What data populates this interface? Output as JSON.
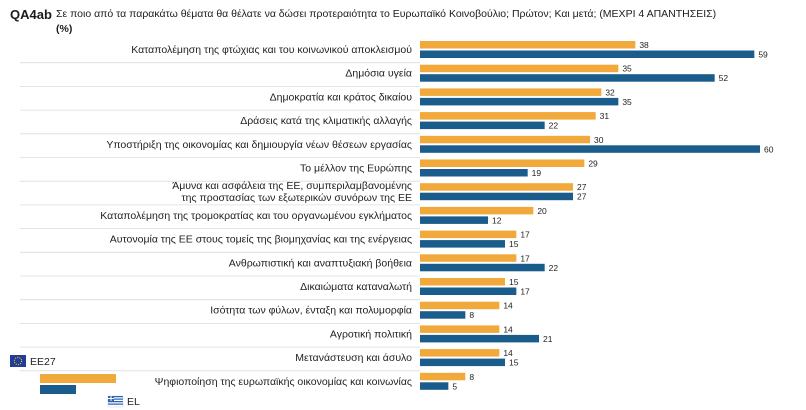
{
  "question": {
    "code": "QA4ab",
    "text": "Σε ποιο από τα παρακάτω θέματα θα θέλατε να δώσει προτεραιότητα το Ευρωπαϊκό Κοινοβούλιο; Πρώτον; Και μετά; (ΜΕΧΡΙ 4 ΑΠΑΝΤΗΣΕΙΣ)",
    "unit": "(%)"
  },
  "colors": {
    "eu27": "#f2a93b",
    "el": "#1a5c8c"
  },
  "legend": [
    {
      "label": "EE27",
      "icon": "eu-flag-icon"
    },
    {
      "label": "EL",
      "icon": "greek-flag-icon"
    }
  ],
  "chart_data": {
    "type": "bar",
    "orientation": "horizontal",
    "xlim": [
      0,
      60
    ],
    "grid": false,
    "legend_position": "bottom-left",
    "categories": [
      "Καταπολέμηση της φτώχιας και του κοινωνικού αποκλεισμού",
      "Δημόσια υγεία",
      "Δημοκρατία και κράτος δικαίου",
      "Δράσεις κατά της κλιματικής αλλαγής",
      "Υποστήριξη της οικονομίας και δημιουργία νέων θέσεων εργασίας",
      "Το μέλλον της Ευρώπης",
      "Άμυνα και ασφάλεια της ΕΕ, συμπεριλαμβανομένης\nτης προστασίας των εξωτερικών συνόρων της ΕΕ",
      "Καταπολέμηση της τρομοκρατίας και του οργανωμένου εγκλήματος",
      "Αυτονομία της ΕΕ στους τομείς της βιομηχανίας και της ενέργειας",
      "Ανθρωπιστική και αναπτυξιακή βοήθεια",
      "Δικαιώματα καταναλωτή",
      "Ισότητα των φύλων, ένταξη και πολυμορφία",
      "Αγροτική πολιτική",
      "Μετανάστευση και άσυλο",
      "Ψηφιοποίηση της ευρωπαϊκής οικονομίας και κοινωνίας"
    ],
    "series": [
      {
        "name": "EE27",
        "values": [
          38,
          35,
          32,
          31,
          30,
          29,
          27,
          20,
          17,
          17,
          15,
          14,
          14,
          14,
          8
        ]
      },
      {
        "name": "EL",
        "values": [
          59,
          52,
          35,
          22,
          60,
          19,
          27,
          12,
          15,
          22,
          17,
          8,
          21,
          15,
          5
        ]
      }
    ]
  }
}
